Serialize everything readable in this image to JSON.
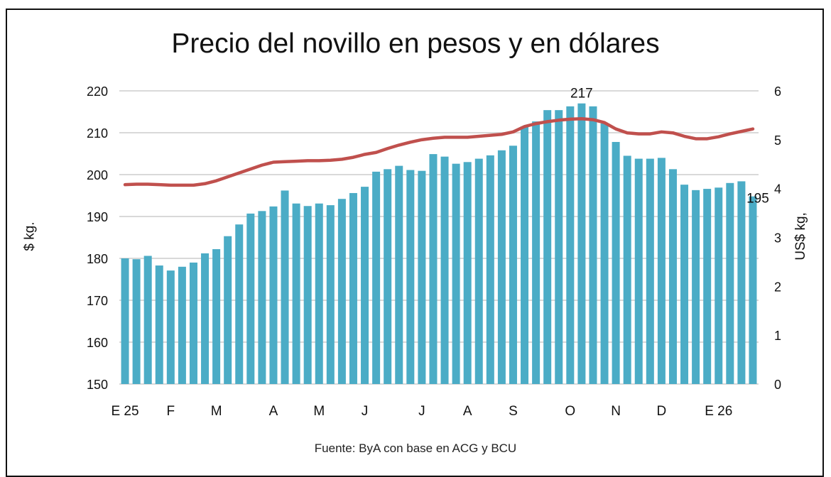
{
  "chart_data": {
    "type": "bar",
    "title": "Precio del novillo en pesos y en dólares",
    "ylabel": "$ kg.",
    "y2label": "US$ kg,",
    "ylim": [
      150,
      220
    ],
    "y_ticks": [
      150,
      160,
      170,
      180,
      190,
      200,
      210,
      220
    ],
    "y2lim": [
      0,
      6
    ],
    "y2_ticks": [
      0,
      1,
      2,
      3,
      4,
      5,
      6
    ],
    "grid": true,
    "x_labels": [
      {
        "label": "E 25",
        "index": 0
      },
      {
        "label": "F",
        "index": 4
      },
      {
        "label": "M",
        "index": 8
      },
      {
        "label": "A",
        "index": 13
      },
      {
        "label": "M",
        "index": 17
      },
      {
        "label": "J",
        "index": 21
      },
      {
        "label": "J",
        "index": 26
      },
      {
        "label": "A",
        "index": 30
      },
      {
        "label": "S",
        "index": 34
      },
      {
        "label": "O",
        "index": 39
      },
      {
        "label": "N",
        "index": 43
      },
      {
        "label": "D",
        "index": 47
      },
      {
        "label": "E 26",
        "index": 52
      }
    ],
    "series": [
      {
        "type": "bar",
        "axis": "left",
        "color": "#4bacc6",
        "values": [
          180,
          179.8,
          180.6,
          178.3,
          177.1,
          178,
          179,
          181.2,
          182.2,
          185.3,
          188.1,
          190.7,
          191.3,
          192.4,
          196.2,
          193.1,
          192.5,
          193.1,
          192.7,
          194.2,
          195.6,
          197.1,
          200.7,
          201.3,
          202.1,
          201.1,
          200.9,
          204.9,
          204.3,
          202.6,
          203,
          203.8,
          204.6,
          205.8,
          206.9,
          211.5,
          212.7,
          215.4,
          215.4,
          216.3,
          217,
          216.3,
          212.2,
          207.8,
          204.5,
          203.8,
          203.8,
          204,
          201.3,
          197.6,
          196.3,
          196.6,
          196.9,
          198,
          198.4,
          194.8
        ]
      },
      {
        "type": "line",
        "axis": "right",
        "color": "#c0504d",
        "values": [
          4.08,
          4.09,
          4.09,
          4.08,
          4.07,
          4.07,
          4.07,
          4.1,
          4.16,
          4.24,
          4.32,
          4.4,
          4.48,
          4.54,
          4.55,
          4.56,
          4.57,
          4.57,
          4.58,
          4.6,
          4.64,
          4.7,
          4.74,
          4.82,
          4.89,
          4.95,
          5.0,
          5.03,
          5.05,
          5.05,
          5.05,
          5.07,
          5.09,
          5.11,
          5.16,
          5.27,
          5.33,
          5.37,
          5.4,
          5.42,
          5.43,
          5.41,
          5.35,
          5.22,
          5.14,
          5.12,
          5.12,
          5.16,
          5.14,
          5.07,
          5.02,
          5.02,
          5.06,
          5.12,
          5.17,
          5.22
        ]
      }
    ],
    "annotations": [
      {
        "text": "217",
        "index": 40
      },
      {
        "text": "195",
        "index": 55
      }
    ],
    "source": "Fuente: ByA con base en ACG y BCU"
  }
}
